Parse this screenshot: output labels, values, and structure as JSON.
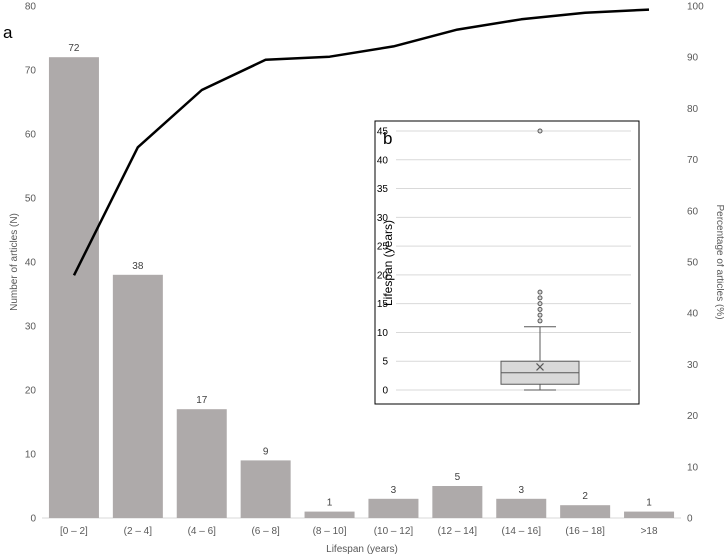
{
  "chart_data": [
    {
      "type": "bar",
      "panel_label": "a",
      "categories": [
        "[0 – 2]",
        "(2 – 4]",
        "(4 – 6]",
        "(6 – 8]",
        "(8 – 10]",
        "(10 – 12]",
        "(12 – 14]",
        "(14 – 16]",
        "(16 – 18]",
        ">18"
      ],
      "series": [
        {
          "type": "bar",
          "values": [
            72,
            38,
            17,
            9,
            1,
            3,
            5,
            3,
            2,
            1
          ],
          "color": "#aeaaaa",
          "axis": "left"
        },
        {
          "type": "line",
          "values": [
            47.4,
            72.4,
            83.6,
            89.5,
            90.1,
            92.1,
            95.4,
            97.4,
            98.7,
            99.3
          ],
          "color": "#000000",
          "axis": "right"
        }
      ],
      "xlabel": "Lifespan (years)",
      "ylabel": "Number of articles (N)",
      "ylabel_right": "Percentage of articles (%)",
      "ylim": [
        0,
        80
      ],
      "yticks": [
        "0",
        "10",
        "20",
        "30",
        "40",
        "50",
        "60",
        "70",
        "80"
      ],
      "ylim_right": [
        0,
        100
      ],
      "yticks_right": [
        "0",
        "10",
        "20",
        "30",
        "40",
        "50",
        "60",
        "70",
        "80",
        "90",
        "100"
      ],
      "grid": false,
      "legend": "none"
    },
    {
      "type": "boxplot",
      "panel_label": "b",
      "ylabel": "Lifespan (years)",
      "ylim": [
        0,
        45
      ],
      "yticks": [
        "0",
        "5",
        "10",
        "15",
        "20",
        "25",
        "30",
        "35",
        "40",
        "45"
      ],
      "grid": true,
      "box": {
        "min": 0,
        "q1": 1,
        "median": 3,
        "q3": 5,
        "max": 11,
        "mean": 4
      },
      "outliers": [
        12,
        13,
        14,
        15,
        16,
        17,
        45
      ],
      "color": "#d9d9d9"
    }
  ]
}
